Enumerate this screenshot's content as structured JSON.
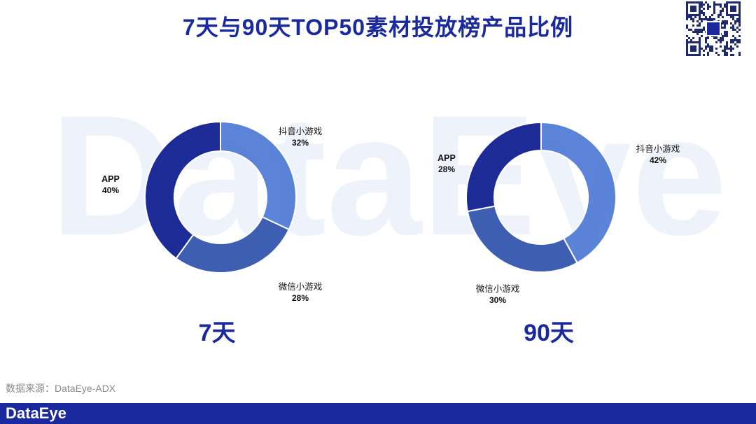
{
  "page": {
    "title": "7天与90天TOP50素材投放榜产品比例",
    "source": "数据来源：DataEye-ADX",
    "footer_logo": "DataEye",
    "watermark": "DataEye"
  },
  "colors": {
    "title": "#1a2a9e",
    "footer": "#1a2a9e",
    "APP": "#0c1b8e",
    "抖音小游戏": "#4f7ad4",
    "微信小游戏": "#2f52ab"
  },
  "chart_data": [
    {
      "type": "pie",
      "caption": "7天",
      "categories": [
        "抖音小游戏",
        "微信小游戏",
        "APP"
      ],
      "values": [
        32,
        28,
        40
      ],
      "value_labels": [
        "32%",
        "28%",
        "40%"
      ]
    },
    {
      "type": "pie",
      "caption": "90天",
      "categories": [
        "抖音小游戏",
        "微信小游戏",
        "APP"
      ],
      "values": [
        42,
        30,
        28
      ],
      "value_labels": [
        "42%",
        "30%",
        "28%"
      ]
    }
  ]
}
